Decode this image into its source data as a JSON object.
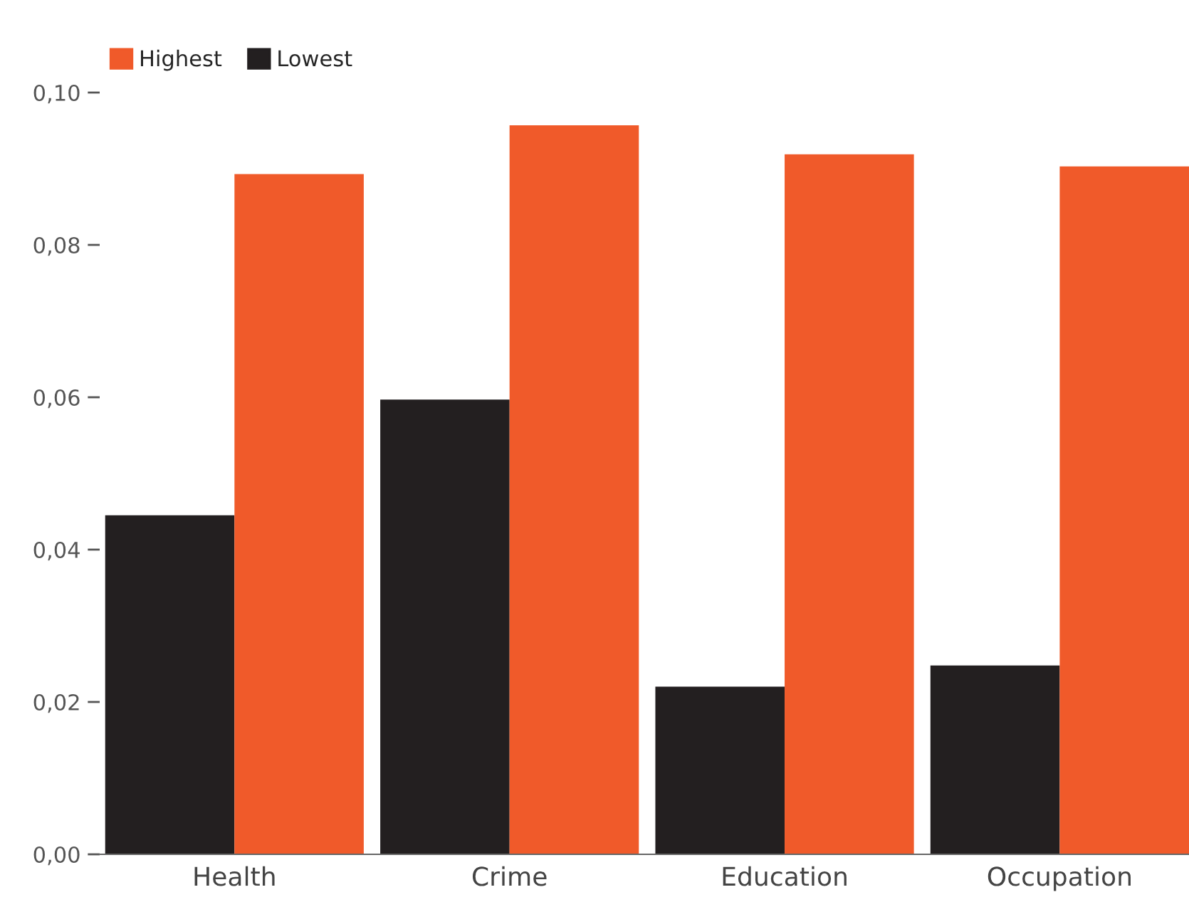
{
  "chart_data": {
    "type": "bar",
    "categories": [
      "Health",
      "Crime",
      "Education",
      "Occupation"
    ],
    "series": [
      {
        "name": "Lowest",
        "color": "#231f20",
        "values": [
          0.0445,
          0.0597,
          0.022,
          0.0248
        ]
      },
      {
        "name": "Highest",
        "color": "#f05a2a",
        "values": [
          0.0893,
          0.0957,
          0.0919,
          0.0903
        ]
      }
    ],
    "ylim": [
      0,
      0.1
    ],
    "yticks": [
      {
        "value": 0,
        "label": "0,00"
      },
      {
        "value": 0.02,
        "label": "0,02"
      },
      {
        "value": 0.04,
        "label": "0,04"
      },
      {
        "value": 0.06,
        "label": "0,06"
      },
      {
        "value": 0.08,
        "label": "0,08"
      },
      {
        "value": 0.1,
        "label": "0,10"
      }
    ],
    "grid": false,
    "legend": "top left"
  }
}
